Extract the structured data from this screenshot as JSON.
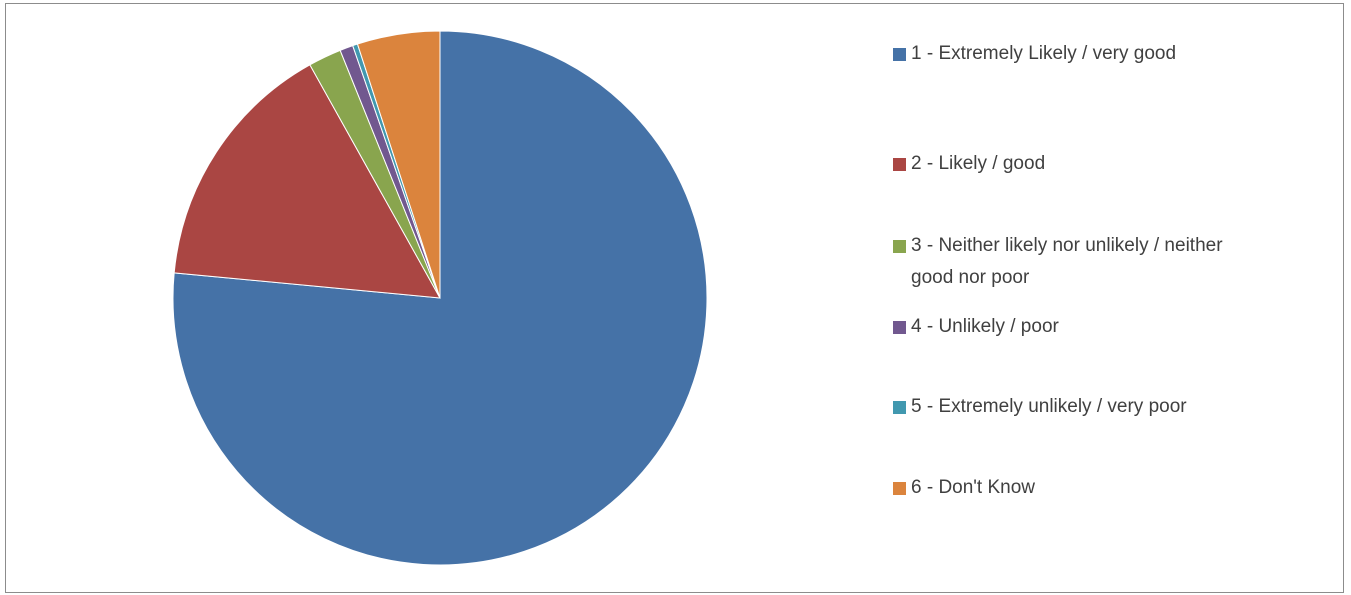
{
  "chart_data": {
    "type": "pie",
    "title": "",
    "categories": [
      "1 - Extremely Likely / very good",
      "2 - Likely / good",
      "3 - Neither likely nor unlikely / neither good nor poor",
      "4 - Unlikely / poor",
      "5 - Extremely unlikely / very poor",
      "6 - Don't Know"
    ],
    "legend_lines": [
      "1 - Extremely Likely / very good",
      "2 - Likely / good",
      "3 - Neither likely nor unlikely / neither\ngood nor poor",
      "4 - Unlikely / poor",
      "5 - Extremely unlikely / very poor",
      "6 - Don't Know"
    ],
    "values": [
      76.5,
      15.4,
      2.0,
      0.8,
      0.3,
      5.0
    ],
    "colors": [
      "#4572A7",
      "#AA4643",
      "#89A54E",
      "#71588F",
      "#4198AF",
      "#DB843D"
    ],
    "legend_position": "right",
    "start_angle_deg": 0,
    "direction": "clockwise"
  }
}
